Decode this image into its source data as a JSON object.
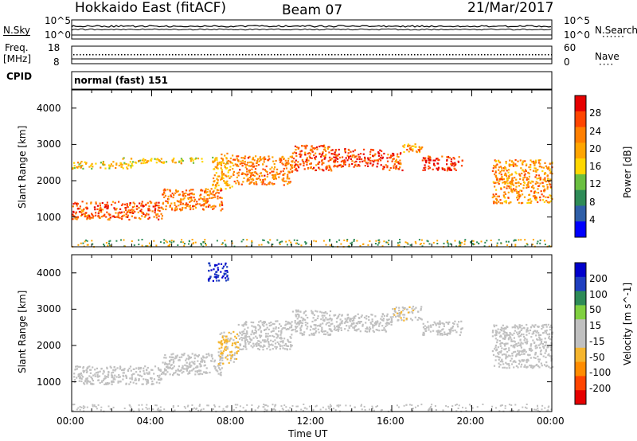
{
  "header": {
    "station": "Hokkaido East (fitACF)",
    "beam": "Beam 07",
    "date": "21/Mar/2017"
  },
  "top_panels": {
    "nsky_label": "N.Sky",
    "nsky_ticks": [
      "10^5",
      "10^0"
    ],
    "nsearch_label": "N.Search",
    "nsearch_ticks": [
      "10^5",
      "10^0"
    ],
    "freq_label_1": "Freq.",
    "freq_label_2": "[MHz]",
    "freq_ticks": [
      "18",
      "8"
    ],
    "nave_label": "Nave",
    "nave_ticks": [
      "60",
      "0"
    ],
    "cpid_label": "CPID",
    "cpid_value": "normal (fast) 151"
  },
  "colors": {
    "power": [
      "#0000ff",
      "#2f5fa8",
      "#2e8b57",
      "#6abf40",
      "#ffd700",
      "#ffa500",
      "#ff7f00",
      "#ff4500",
      "#e60000"
    ],
    "velocity": [
      "#e60000",
      "#ff4500",
      "#ff8c00",
      "#f5b52e",
      "#c0c0c0",
      "#c0c0c0",
      "#80d040",
      "#2e8b57",
      "#1f3fbf",
      "#0000cc"
    ],
    "ground": "#c0c0c0"
  },
  "chart_data": [
    {
      "type": "heatmap",
      "name": "power",
      "xlabel": "Time UT",
      "ylabel": "Slant Range [km]",
      "x_ticks": [
        "00:00",
        "04:00",
        "08:00",
        "12:00",
        "16:00",
        "20:00",
        "00:00"
      ],
      "xlim_hours": [
        0,
        24
      ],
      "ylim": [
        180,
        4500
      ],
      "y_ticks": [
        1000,
        2000,
        3000,
        4000
      ],
      "colorbar_label": "Power [dB]",
      "colorbar_ticks": [
        "4",
        "8",
        "12",
        "16",
        "20",
        "24",
        "28"
      ],
      "color_range": [
        0,
        30
      ],
      "features": [
        {
          "hours": [
            0.0,
            4.5
          ],
          "range": [
            950,
            1450
          ],
          "power": 24
        },
        {
          "hours": [
            4.5,
            7.5
          ],
          "range": [
            1200,
            1800
          ],
          "power": 22
        },
        {
          "hours": [
            0.0,
            3.0
          ],
          "range": [
            2350,
            2550
          ],
          "power": 16
        },
        {
          "hours": [
            2.5,
            6.5
          ],
          "range": [
            2500,
            2650
          ],
          "power": 16
        },
        {
          "hours": [
            7.0,
            8.0
          ],
          "range": [
            1800,
            2800
          ],
          "power": 18
        },
        {
          "hours": [
            8.0,
            11.0
          ],
          "range": [
            1900,
            2700
          ],
          "power": 22
        },
        {
          "hours": [
            11.0,
            13.0
          ],
          "range": [
            2300,
            3000
          ],
          "power": 24
        },
        {
          "hours": [
            13.0,
            15.5
          ],
          "range": [
            2400,
            2900
          ],
          "power": 26
        },
        {
          "hours": [
            15.5,
            16.5
          ],
          "range": [
            2300,
            2800
          ],
          "power": 24
        },
        {
          "hours": [
            16.5,
            17.5
          ],
          "range": [
            2800,
            3100
          ],
          "power": 20
        },
        {
          "hours": [
            17.5,
            19.5
          ],
          "range": [
            2300,
            2700
          ],
          "power": 26
        },
        {
          "hours": [
            21.0,
            24.0
          ],
          "range": [
            1400,
            2600
          ],
          "power": 20
        }
      ]
    },
    {
      "type": "heatmap",
      "name": "velocity",
      "xlabel": "Time UT",
      "ylabel": "Slant Range [km]",
      "x_ticks": [
        "00:00",
        "04:00",
        "08:00",
        "12:00",
        "16:00",
        "20:00",
        "00:00"
      ],
      "xlim_hours": [
        0,
        24
      ],
      "ylim": [
        180,
        4500
      ],
      "y_ticks": [
        1000,
        2000,
        3000,
        4000
      ],
      "colorbar_label": "Velocity [m s^-1]",
      "colorbar_ticks": [
        "-200",
        "-100",
        "-50",
        "-15",
        "15",
        "50",
        "100",
        "200"
      ],
      "color_range": [
        -250,
        250
      ],
      "features": [
        {
          "hours": [
            0.0,
            4.5
          ],
          "range": [
            950,
            1450
          ],
          "velocity": 0
        },
        {
          "hours": [
            4.5,
            7.5
          ],
          "range": [
            1200,
            1800
          ],
          "velocity": -10
        },
        {
          "hours": [
            7.3,
            8.3
          ],
          "range": [
            1500,
            2400
          ],
          "velocity": -60
        },
        {
          "hours": [
            8.3,
            11.0
          ],
          "range": [
            1900,
            2700
          ],
          "velocity": 20
        },
        {
          "hours": [
            11.0,
            13.0
          ],
          "range": [
            2300,
            3000
          ],
          "velocity": 0
        },
        {
          "hours": [
            13.0,
            16.0
          ],
          "range": [
            2400,
            2900
          ],
          "velocity": 0
        },
        {
          "hours": [
            16.0,
            17.5
          ],
          "range": [
            2700,
            3100
          ],
          "velocity": -30
        },
        {
          "hours": [
            17.5,
            19.5
          ],
          "range": [
            2300,
            2700
          ],
          "velocity": 0
        },
        {
          "hours": [
            21.0,
            24.0
          ],
          "range": [
            1400,
            2600
          ],
          "velocity": 0
        },
        {
          "hours": [
            6.8,
            7.8
          ],
          "range": [
            3800,
            4300
          ],
          "velocity": 200
        }
      ]
    }
  ]
}
